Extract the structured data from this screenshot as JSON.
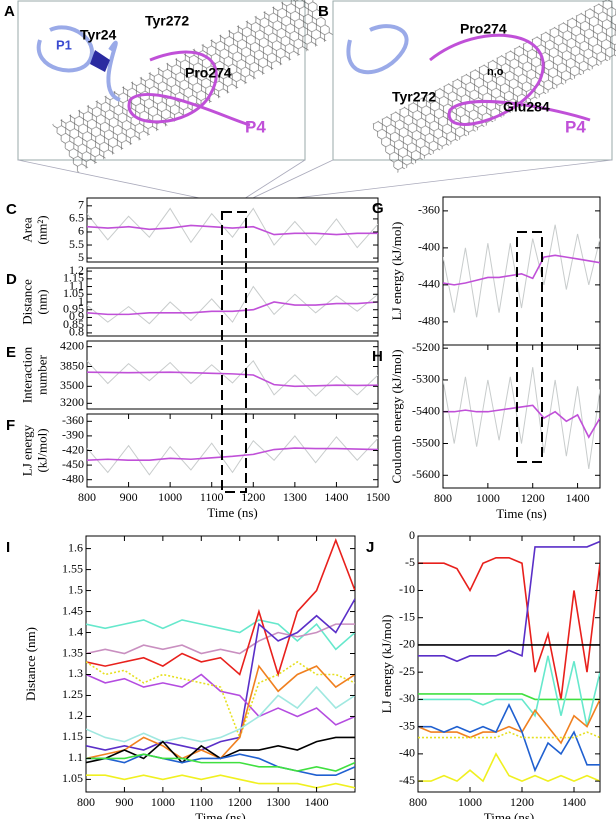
{
  "images": [
    {
      "panel": "A",
      "labels": [
        "P1",
        "Tyr24",
        "Tyr272",
        "Pro274",
        "P4"
      ]
    },
    {
      "panel": "B",
      "labels": [
        "Pro274",
        "Tyr272",
        "n,o",
        "Glu284",
        "P4"
      ]
    }
  ],
  "chart_data": [
    {
      "type": "line",
      "panel": "C",
      "y_label": [
        "Area",
        "(nm²)"
      ],
      "x": [
        800,
        850,
        900,
        950,
        1000,
        1050,
        1100,
        1150,
        1200,
        1250,
        1300,
        1350,
        1400,
        1450,
        1500
      ],
      "xlim": [
        800,
        1500
      ],
      "ylim": [
        4.85,
        7.3
      ],
      "yticks": [
        5,
        5.5,
        6,
        6.5,
        7
      ],
      "series": [
        {
          "color": "#c8cccc",
          "values": [
            6.7,
            5.7,
            6.6,
            5.8,
            6.9,
            5.6,
            6.7,
            5.8,
            6.9,
            5.5,
            6.4,
            5.5,
            6.5,
            5.4,
            6.3
          ]
        },
        {
          "color": "#c050d8",
          "values": [
            6.2,
            6.15,
            6.2,
            6.1,
            6.15,
            6.25,
            6.2,
            6.15,
            6.2,
            5.9,
            5.95,
            5.95,
            5.9,
            5.95,
            5.95
          ]
        }
      ]
    },
    {
      "type": "line",
      "panel": "D",
      "y_label": [
        "Distance",
        "(nm)"
      ],
      "x": [
        800,
        850,
        900,
        950,
        1000,
        1050,
        1100,
        1150,
        1200,
        1250,
        1300,
        1350,
        1400,
        1450,
        1500
      ],
      "xlim": [
        800,
        1500
      ],
      "ylim": [
        0.78,
        1.22
      ],
      "yticks": [
        0.8,
        0.85,
        0.9,
        0.95,
        1,
        1.05,
        1.1,
        1.15,
        1.2
      ],
      "series": [
        {
          "color": "#c8cccc",
          "values": [
            0.98,
            0.87,
            0.97,
            0.86,
            1,
            0.88,
            1.02,
            0.87,
            1.1,
            0.92,
            1.05,
            0.93,
            1.04,
            0.94,
            1.05
          ]
        },
        {
          "color": "#c050d8",
          "values": [
            0.93,
            0.92,
            0.92,
            0.93,
            0.93,
            0.93,
            0.94,
            0.94,
            0.95,
            1,
            0.98,
            0.98,
            0.99,
            0.99,
            1
          ]
        }
      ]
    },
    {
      "type": "line",
      "panel": "E",
      "y_label": [
        "Interaction",
        "number"
      ],
      "x": [
        800,
        850,
        900,
        950,
        1000,
        1050,
        1100,
        1150,
        1200,
        1250,
        1300,
        1350,
        1400,
        1450,
        1500
      ],
      "xlim": [
        800,
        1500
      ],
      "ylim": [
        3100,
        4300
      ],
      "yticks": [
        3200,
        3500,
        3850,
        4200
      ],
      "series": [
        {
          "color": "#c8cccc",
          "values": [
            3950,
            3550,
            3900,
            3600,
            3920,
            3550,
            3880,
            3560,
            3950,
            3350,
            3700,
            3330,
            3680,
            3350,
            3700
          ]
        },
        {
          "color": "#c050d8",
          "values": [
            3750,
            3745,
            3740,
            3745,
            3750,
            3740,
            3730,
            3720,
            3700,
            3530,
            3500,
            3510,
            3520,
            3515,
            3520
          ]
        }
      ]
    },
    {
      "type": "line",
      "panel": "F",
      "y_label": [
        "LJ energy",
        "(kJ/mol)"
      ],
      "x_label": "Time (ns)",
      "x": [
        800,
        850,
        900,
        950,
        1000,
        1050,
        1100,
        1150,
        1200,
        1250,
        1300,
        1350,
        1400,
        1450,
        1500
      ],
      "xlim": [
        800,
        1500
      ],
      "xticks": [
        800,
        900,
        1000,
        1100,
        1200,
        1300,
        1400,
        1500
      ],
      "ylim": [
        -495,
        -345
      ],
      "yticks": [
        -480,
        -450,
        -420,
        -390,
        -360
      ],
      "series": [
        {
          "color": "#c8cccc",
          "values": [
            -415,
            -465,
            -410,
            -470,
            -412,
            -460,
            -405,
            -465,
            -400,
            -440,
            -390,
            -445,
            -392,
            -440,
            -395
          ]
        },
        {
          "color": "#c050d8",
          "values": [
            -440,
            -438,
            -440,
            -440,
            -436,
            -438,
            -435,
            -432,
            -428,
            -418,
            -415,
            -416,
            -416,
            -417,
            -418
          ]
        }
      ]
    },
    {
      "type": "line",
      "panel": "G",
      "y_label": [
        "LJ energy (kJ/mol)"
      ],
      "x": [
        800,
        850,
        900,
        950,
        1000,
        1050,
        1100,
        1150,
        1200,
        1250,
        1300,
        1350,
        1400,
        1450,
        1500
      ],
      "xlim": [
        800,
        1500
      ],
      "ylim": [
        -505,
        -345
      ],
      "yticks": [
        -480,
        -440,
        -400,
        -360
      ],
      "series": [
        {
          "color": "#c8cccc",
          "values": [
            -410,
            -470,
            -400,
            -475,
            -395,
            -470,
            -395,
            -465,
            -390,
            -440,
            -375,
            -445,
            -385,
            -440,
            -390
          ]
        },
        {
          "color": "#c050d8",
          "values": [
            -438,
            -440,
            -438,
            -435,
            -432,
            -432,
            -430,
            -428,
            -433,
            -410,
            -408,
            -410,
            -412,
            -414,
            -416
          ]
        }
      ]
    },
    {
      "type": "line",
      "panel": "H",
      "y_label": [
        "Coulomb energy (kJ/mol)"
      ],
      "x_label": "Time (ns)",
      "x": [
        800,
        850,
        900,
        950,
        1000,
        1050,
        1100,
        1150,
        1200,
        1250,
        1300,
        1350,
        1400,
        1450,
        1500
      ],
      "xlim": [
        800,
        1500
      ],
      "xticks": [
        800,
        1000,
        1200,
        1400
      ],
      "ylim": [
        -5640,
        -5190
      ],
      "yticks": [
        -5600,
        -5500,
        -5400,
        -5300,
        -5200
      ],
      "series": [
        {
          "color": "#c8cccc",
          "values": [
            -5300,
            -5500,
            -5290,
            -5510,
            -5300,
            -5490,
            -5290,
            -5500,
            -5260,
            -5530,
            -5300,
            -5540,
            -5320,
            -5580,
            -5330
          ]
        },
        {
          "color": "#c050d8",
          "values": [
            -5400,
            -5400,
            -5395,
            -5400,
            -5400,
            -5395,
            -5390,
            -5385,
            -5380,
            -5420,
            -5400,
            -5430,
            -5410,
            -5480,
            -5420
          ]
        }
      ]
    },
    {
      "type": "line",
      "panel": "I",
      "y_label": [
        "Distance (nm)"
      ],
      "x_label": "Time (ns)",
      "x": [
        800,
        850,
        900,
        950,
        1000,
        1050,
        1100,
        1150,
        1200,
        1250,
        1300,
        1350,
        1400,
        1450,
        1500
      ],
      "xlim": [
        800,
        1500
      ],
      "xticks": [
        800,
        900,
        1000,
        1100,
        1200,
        1300,
        1400
      ],
      "ylim": [
        1.02,
        1.63
      ],
      "yticks": [
        1.05,
        1.1,
        1.15,
        1.2,
        1.25,
        1.3,
        1.35,
        1.4,
        1.45,
        1.5,
        1.55,
        1.6
      ],
      "series": [
        {
          "color": "#66e8cc",
          "values": [
            1.42,
            1.41,
            1.42,
            1.43,
            1.41,
            1.43,
            1.42,
            1.41,
            1.4,
            1.43,
            1.42,
            1.38,
            1.42,
            1.36,
            1.4
          ]
        },
        {
          "color": "#c98fc0",
          "values": [
            1.35,
            1.36,
            1.35,
            1.37,
            1.36,
            1.37,
            1.35,
            1.36,
            1.35,
            1.38,
            1.4,
            1.39,
            1.4,
            1.42,
            1.42
          ]
        },
        {
          "color": "#e8201c",
          "values": [
            1.33,
            1.32,
            1.33,
            1.34,
            1.32,
            1.35,
            1.33,
            1.34,
            1.3,
            1.45,
            1.3,
            1.45,
            1.5,
            1.62,
            1.5
          ]
        },
        {
          "color": "#5a2fc8",
          "values": [
            1.13,
            1.12,
            1.13,
            1.12,
            1.14,
            1.13,
            1.12,
            1.14,
            1.15,
            1.42,
            1.38,
            1.4,
            1.44,
            1.4,
            1.48
          ]
        },
        {
          "color": "#b44ce0",
          "values": [
            1.3,
            1.28,
            1.29,
            1.27,
            1.28,
            1.27,
            1.3,
            1.26,
            1.25,
            1.2,
            1.22,
            1.2,
            1.22,
            1.18,
            1.2
          ]
        },
        {
          "color": "#e6e020",
          "dash": true,
          "values": [
            1.33,
            1.3,
            1.31,
            1.28,
            1.3,
            1.29,
            1.28,
            1.27,
            1.15,
            1.28,
            1.3,
            1.33,
            1.3,
            1.3,
            1.28
          ]
        },
        {
          "color": "#f08020",
          "values": [
            1.1,
            1.11,
            1.12,
            1.15,
            1.13,
            1.1,
            1.12,
            1.1,
            1.15,
            1.32,
            1.26,
            1.3,
            1.32,
            1.27,
            1.3
          ]
        },
        {
          "color": "#a0e8e0",
          "values": [
            1.17,
            1.15,
            1.14,
            1.16,
            1.14,
            1.15,
            1.14,
            1.15,
            1.17,
            1.2,
            1.25,
            1.22,
            1.27,
            1.22,
            1.25
          ]
        },
        {
          "color": "#000000",
          "values": [
            1.09,
            1.1,
            1.12,
            1.1,
            1.14,
            1.09,
            1.13,
            1.1,
            1.12,
            1.12,
            1.13,
            1.12,
            1.14,
            1.15,
            1.15
          ]
        },
        {
          "color": "#2060d0",
          "values": [
            1.1,
            1.1,
            1.09,
            1.11,
            1.1,
            1.09,
            1.1,
            1.1,
            1.11,
            1.1,
            1.08,
            1.07,
            1.06,
            1.06,
            1.08
          ]
        },
        {
          "color": "#40e040",
          "values": [
            1.1,
            1.1,
            1.1,
            1.11,
            1.1,
            1.1,
            1.09,
            1.09,
            1.09,
            1.08,
            1.08,
            1.07,
            1.08,
            1.07,
            1.09
          ]
        },
        {
          "color": "#f0f020",
          "values": [
            1.06,
            1.06,
            1.05,
            1.06,
            1.05,
            1.06,
            1.05,
            1.06,
            1.05,
            1.04,
            1.04,
            1.04,
            1.03,
            1.04,
            1.03
          ]
        }
      ]
    },
    {
      "type": "line",
      "panel": "J",
      "y_label": [
        "LJ energy (kJ/mol)"
      ],
      "x_label": "Time (ns)",
      "x": [
        800,
        850,
        900,
        950,
        1000,
        1050,
        1100,
        1150,
        1200,
        1250,
        1300,
        1350,
        1400,
        1450,
        1500
      ],
      "xlim": [
        800,
        1500
      ],
      "xticks": [
        800,
        1000,
        1200,
        1400
      ],
      "ylim": [
        -47,
        0
      ],
      "yticks": [
        -45,
        -40,
        -35,
        -30,
        -25,
        -20,
        -15,
        -10,
        -5,
        0
      ],
      "series": [
        {
          "color": "#e8201c",
          "values": [
            -5,
            -5,
            -5,
            -6,
            -10,
            -5,
            -4,
            -4,
            -5,
            -25,
            -18,
            -30,
            -10,
            -25,
            -5
          ]
        },
        {
          "color": "#5a2fc8",
          "values": [
            -22,
            -22,
            -22,
            -23,
            -22,
            -22,
            -22,
            -21,
            -22,
            -2,
            -2,
            -2,
            -2,
            -2,
            -1
          ]
        },
        {
          "color": "#000000",
          "values": [
            -20,
            -20,
            -20,
            -20,
            -20,
            -20,
            -20,
            -20,
            -20,
            -20,
            -20,
            -20,
            -20,
            -20,
            -20
          ]
        },
        {
          "color": "#40e040",
          "values": [
            -29,
            -29,
            -29,
            -29,
            -29,
            -29,
            -29,
            -29,
            -29,
            -30,
            -30,
            -30,
            -30,
            -30,
            -30
          ]
        },
        {
          "color": "#66e8cc",
          "values": [
            -30,
            -30,
            -30,
            -30,
            -30,
            -31,
            -30,
            -30,
            -30,
            -33,
            -22,
            -33,
            -23,
            -35,
            -25
          ]
        },
        {
          "color": "#f08020",
          "values": [
            -35,
            -36,
            -36,
            -36,
            -37,
            -36,
            -36,
            -35,
            -36,
            -32,
            -35,
            -38,
            -33,
            -35,
            -30
          ]
        },
        {
          "color": "#2060d0",
          "values": [
            -35,
            -35,
            -36,
            -35,
            -36,
            -35,
            -36,
            -31,
            -36,
            -43,
            -38,
            -40,
            -36,
            -42,
            -42
          ]
        },
        {
          "color": "#e6e020",
          "dash": true,
          "values": [
            -37,
            -37,
            -37,
            -37,
            -37,
            -37,
            -37,
            -36,
            -37,
            -37,
            -37,
            -37,
            -37,
            -36,
            -37
          ]
        },
        {
          "color": "#f0f020",
          "values": [
            -45,
            -45,
            -44,
            -45,
            -43,
            -45,
            -40,
            -44,
            -45,
            -44,
            -45,
            -44,
            -45,
            -44,
            -45
          ]
        }
      ]
    }
  ]
}
